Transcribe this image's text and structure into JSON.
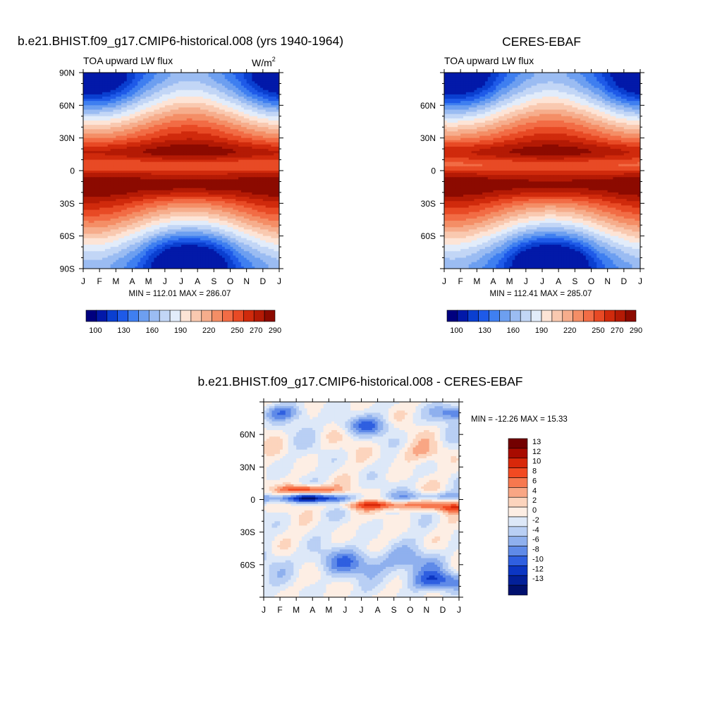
{
  "chart_data": [
    {
      "type": "heatmap",
      "title": "b.e21.BHIST.f09_g17.CMIP6-historical.008 (yrs 1940-1964)",
      "subtitle_left": "TOA upward LW flux",
      "units": "W/m",
      "units_sup": "2",
      "stats": "MIN = 112.01 MAX = 286.07",
      "x_ticks": [
        "J",
        "F",
        "M",
        "A",
        "M",
        "J",
        "J",
        "A",
        "S",
        "O",
        "N",
        "D",
        "J"
      ],
      "y_ticks": [
        "90N",
        "60N",
        "30N",
        "0",
        "30S",
        "60S",
        "90S"
      ],
      "ylim": [
        -90,
        90
      ],
      "colorbar": {
        "levels": [
          100,
          110,
          120,
          130,
          140,
          150,
          160,
          170,
          180,
          190,
          200,
          210,
          220,
          230,
          240,
          250,
          260,
          270,
          280,
          290
        ],
        "labels": [
          "100",
          "130",
          "160",
          "190",
          "220",
          "250",
          "270",
          "290"
        ]
      },
      "field": "model"
    },
    {
      "type": "heatmap",
      "title": "CERES-EBAF",
      "subtitle_left": "TOA upward LW flux",
      "stats": "MIN = 112.41 MAX = 285.07",
      "x_ticks": [
        "J",
        "F",
        "M",
        "A",
        "M",
        "J",
        "J",
        "A",
        "S",
        "O",
        "N",
        "D",
        "J"
      ],
      "y_ticks": [
        "60N",
        "30N",
        "0",
        "30S",
        "60S"
      ],
      "ylim": [
        -90,
        90
      ],
      "colorbar": {
        "levels": [
          100,
          110,
          120,
          130,
          140,
          150,
          160,
          170,
          180,
          190,
          200,
          210,
          220,
          230,
          240,
          250,
          260,
          270,
          280,
          290
        ],
        "labels": [
          "100",
          "130",
          "160",
          "190",
          "220",
          "250",
          "270",
          "290"
        ]
      },
      "field": "obs"
    },
    {
      "type": "heatmap",
      "title": "b.e21.BHIST.f09_g17.CMIP6-historical.008 - CERES-EBAF",
      "stats": "MIN = -12.26 MAX =  15.33",
      "x_ticks": [
        "J",
        "F",
        "M",
        "A",
        "M",
        "J",
        "J",
        "A",
        "S",
        "O",
        "N",
        "D",
        "J"
      ],
      "y_ticks": [
        "60N",
        "30N",
        "0",
        "30S",
        "60S"
      ],
      "ylim": [
        -90,
        90
      ],
      "colorbar": {
        "levels": [
          13,
          12,
          10,
          8,
          6,
          4,
          2,
          0,
          -2,
          -4,
          -6,
          -8,
          -10,
          -12,
          -13
        ],
        "labels": [
          "13",
          "12",
          "10",
          "8",
          "6",
          "4",
          "2",
          "0",
          "-2",
          "-4",
          "-6",
          "-8",
          "-10",
          "-12",
          "-13"
        ]
      },
      "field": "diff"
    }
  ],
  "palettes": {
    "abs": [
      "#00007f",
      "#0219a9",
      "#0a3fd0",
      "#1e5ae8",
      "#3f7ff0",
      "#6d9ff0",
      "#9bbcf2",
      "#c2d6f6",
      "#e2ecfa",
      "#fde4d6",
      "#f9c9b0",
      "#f6ad8c",
      "#f48e66",
      "#f26c45",
      "#e84a25",
      "#d02a0c",
      "#b41a05",
      "#8c0a00"
    ],
    "diff": [
      "#730000",
      "#a80b00",
      "#d8280a",
      "#f24a22",
      "#f7784f",
      "#f9a684",
      "#fcd4bd",
      "#fdeee4",
      "#dde8f8",
      "#b9cff4",
      "#8fb0ee",
      "#5f8ae8",
      "#2f5fe0",
      "#0c36c3",
      "#032099",
      "#00106e"
    ]
  }
}
